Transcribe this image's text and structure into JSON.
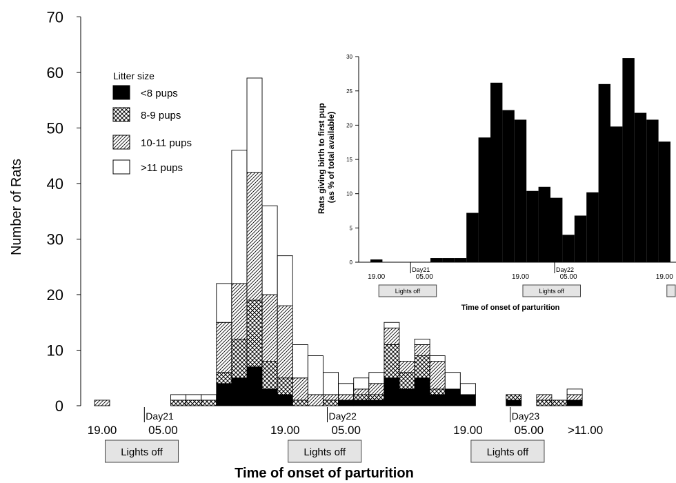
{
  "chart_data": [
    {
      "type": "bar",
      "stacked": true,
      "ylabel": "Number of Rats",
      "xlabel": "Time of onset of parturition",
      "ylim": [
        0,
        70
      ],
      "yticks": [
        0,
        10,
        20,
        30,
        40,
        50,
        60,
        70
      ],
      "legend": {
        "title": "Litter size",
        "placement": "top-left",
        "entries": [
          "<8 pups",
          "8-9 pups",
          "10-11 pups",
          ">11 pups"
        ]
      },
      "series_styles": [
        "solid-black",
        "crosshatch",
        "diagonal-hatch",
        "white"
      ],
      "time_labels": [
        {
          "slot": 0.5,
          "text": "19.00"
        },
        {
          "slot": 4.5,
          "text": "05.00"
        },
        {
          "slot": 12.5,
          "text": "19.00"
        },
        {
          "slot": 16.5,
          "text": "05.00"
        },
        {
          "slot": 24.5,
          "text": "19.00"
        },
        {
          "slot": 28.5,
          "text": "05.00"
        },
        {
          "slot": 32.2,
          "text": ">11.00"
        }
      ],
      "day_labels": [
        {
          "slot": 3,
          "text": "Day21"
        },
        {
          "slot": 15,
          "text": "Day22"
        },
        {
          "slot": 27,
          "text": "Day23"
        }
      ],
      "lights_off": [
        {
          "start_slot": 0.7,
          "end_slot": 5.5,
          "text": "Lights off"
        },
        {
          "start_slot": 12.7,
          "end_slot": 17.5,
          "text": "Lights off"
        },
        {
          "start_slot": 24.7,
          "end_slot": 29.5,
          "text": "Lights off"
        }
      ],
      "bars": [
        {
          "slot": 0,
          "values": [
            0,
            0,
            1,
            0
          ]
        },
        {
          "slot": 5,
          "values": [
            0,
            1,
            0,
            1
          ]
        },
        {
          "slot": 6,
          "values": [
            0,
            1,
            0,
            1
          ]
        },
        {
          "slot": 7,
          "values": [
            0,
            1,
            0,
            1
          ]
        },
        {
          "slot": 8,
          "values": [
            4,
            2,
            9,
            7
          ]
        },
        {
          "slot": 9,
          "values": [
            5,
            7,
            10,
            24
          ]
        },
        {
          "slot": 10,
          "values": [
            7,
            12,
            23,
            17
          ]
        },
        {
          "slot": 11,
          "values": [
            3,
            5,
            12,
            16
          ]
        },
        {
          "slot": 12,
          "values": [
            2,
            3,
            13,
            9
          ]
        },
        {
          "slot": 13,
          "values": [
            0,
            1,
            4,
            6
          ]
        },
        {
          "slot": 14,
          "values": [
            0,
            0,
            2,
            7
          ]
        },
        {
          "slot": 15,
          "values": [
            0,
            1,
            1,
            4
          ]
        },
        {
          "slot": 16,
          "values": [
            1,
            0,
            1,
            2
          ]
        },
        {
          "slot": 17,
          "values": [
            1,
            1,
            1,
            2
          ]
        },
        {
          "slot": 18,
          "values": [
            1,
            1,
            2,
            2
          ]
        },
        {
          "slot": 19,
          "values": [
            5,
            6,
            3,
            1
          ]
        },
        {
          "slot": 20,
          "values": [
            3,
            3,
            2,
            0
          ]
        },
        {
          "slot": 21,
          "values": [
            5,
            4,
            2,
            1
          ]
        },
        {
          "slot": 22,
          "values": [
            2,
            1,
            5,
            1
          ]
        },
        {
          "slot": 23,
          "values": [
            3,
            0,
            0,
            3
          ]
        },
        {
          "slot": 24,
          "values": [
            2,
            0,
            0,
            2
          ]
        },
        {
          "slot": 27,
          "values": [
            1,
            1,
            0,
            0
          ]
        },
        {
          "slot": 29,
          "values": [
            0,
            1,
            1,
            0
          ]
        },
        {
          "slot": 30,
          "values": [
            0,
            1,
            0,
            0
          ]
        },
        {
          "slot": 31,
          "values": [
            1,
            0,
            1,
            1
          ]
        }
      ]
    },
    {
      "type": "bar",
      "inset": true,
      "ylabel": "Rats giving birth to first pup (as % of total available)",
      "xlabel": "Time of onset of parturition",
      "ylim": [
        0,
        30
      ],
      "yticks": [
        0,
        5,
        10,
        15,
        20,
        25,
        30
      ],
      "time_labels": [
        {
          "slot": 0.5,
          "text": "19.00"
        },
        {
          "slot": 4.5,
          "text": "05.00"
        },
        {
          "slot": 12.5,
          "text": "19.00"
        },
        {
          "slot": 16.5,
          "text": "05.00"
        },
        {
          "slot": 24.5,
          "text": "19.00"
        }
      ],
      "day_labels": [
        {
          "slot": 3,
          "text": "Day21"
        },
        {
          "slot": 15,
          "text": "Day22"
        }
      ],
      "lights_off": [
        {
          "start_slot": 0.7,
          "end_slot": 5.5,
          "text": "Lights off"
        },
        {
          "start_slot": 12.7,
          "end_slot": 17.5,
          "text": "Lights off"
        },
        {
          "start_slot": 24.7,
          "end_slot": 27,
          "text": ""
        }
      ],
      "bars": [
        {
          "slot": 0,
          "value": 0.4
        },
        {
          "slot": 5,
          "value": 0.6
        },
        {
          "slot": 6,
          "value": 0.6
        },
        {
          "slot": 7,
          "value": 0.6
        },
        {
          "slot": 8,
          "value": 7.2
        },
        {
          "slot": 9,
          "value": 18.2
        },
        {
          "slot": 10,
          "value": 26.2
        },
        {
          "slot": 11,
          "value": 22.2
        },
        {
          "slot": 12,
          "value": 20.8
        },
        {
          "slot": 13,
          "value": 10.4
        },
        {
          "slot": 14,
          "value": 11.0
        },
        {
          "slot": 15,
          "value": 9.4
        },
        {
          "slot": 16,
          "value": 4.0
        },
        {
          "slot": 17,
          "value": 6.8
        },
        {
          "slot": 18,
          "value": 10.2
        },
        {
          "slot": 19,
          "value": 26.0
        },
        {
          "slot": 20,
          "value": 19.8
        },
        {
          "slot": 21,
          "value": 29.8
        },
        {
          "slot": 22,
          "value": 21.8
        },
        {
          "slot": 23,
          "value": 20.8
        },
        {
          "slot": 24,
          "value": 17.6
        }
      ]
    }
  ]
}
